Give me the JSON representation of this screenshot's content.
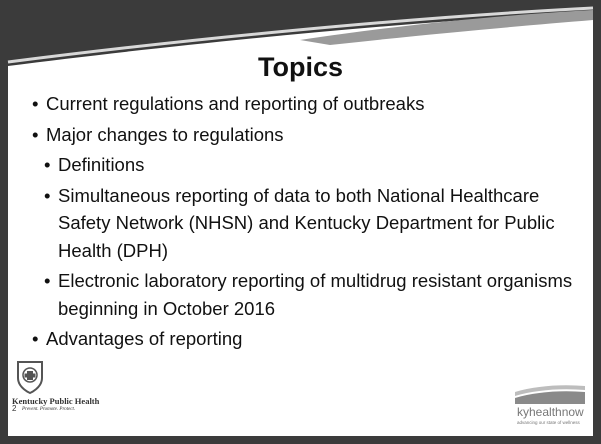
{
  "slide": {
    "title": "Topics",
    "bullets": [
      {
        "level": 1,
        "text": "Current regulations and reporting of outbreaks"
      },
      {
        "level": 1,
        "text": "Major changes to regulations"
      },
      {
        "level": 2,
        "text": "Definitions"
      },
      {
        "level": 2,
        "text": "Simultaneous reporting of data to both National Healthcare Safety Network (NHSN) and Kentucky Department for Public Health (DPH)"
      },
      {
        "level": 2,
        "text": "Electronic laboratory reporting of multidrug resistant organisms beginning in October 2016"
      },
      {
        "level": 1,
        "text": "Advantages of reporting"
      }
    ],
    "footer": {
      "left_logo": "Kentucky Public Health",
      "left_tagline": "Prevent. Promote. Protect.",
      "page_number": "2",
      "right_logo": "kyhealthnow",
      "right_tagline": "advancing our state of wellness"
    }
  }
}
